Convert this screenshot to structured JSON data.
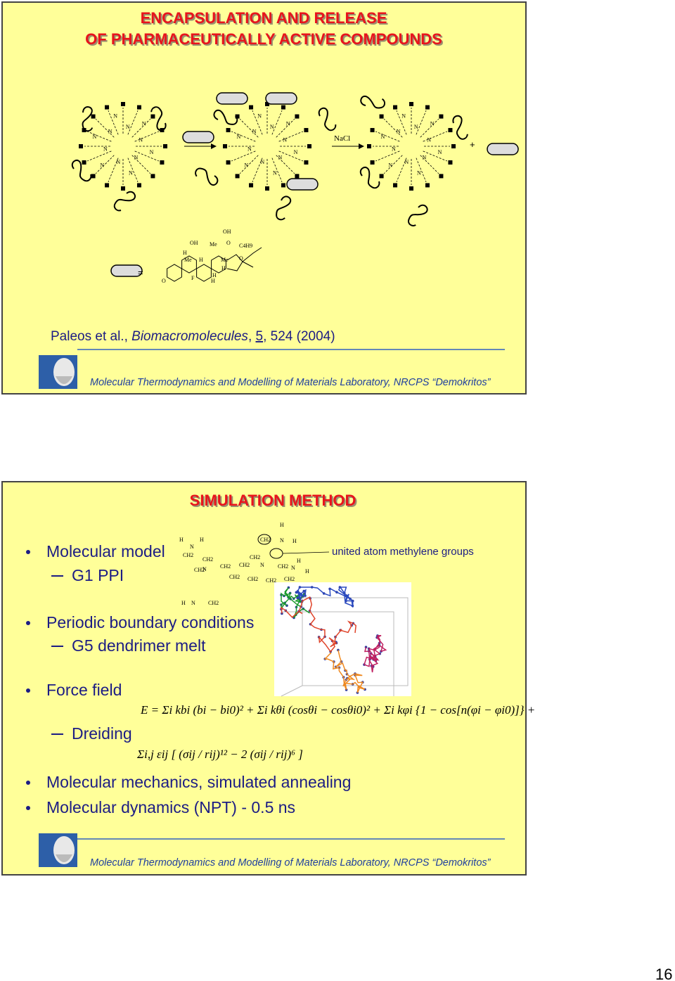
{
  "slide1": {
    "title_lines": [
      "ENCAPSULATION AND RELEASE",
      "OF PHARMACEUTICALLY ACTIVE COMPOUNDS"
    ],
    "scheme": {
      "reagent": "NaCl",
      "plus": "+",
      "equals": "=",
      "atom_label": "N",
      "drug_labels": [
        "OH",
        "OH",
        "Me",
        "O",
        "C4H9",
        "H",
        "Me",
        "H",
        "O",
        "Me",
        "H",
        "H",
        "F",
        "H",
        "O"
      ]
    },
    "reference": {
      "authors": "Paleos et al.",
      "journal": "Biomacromolecules",
      "volume": "5",
      "rest": "524 (2004)"
    },
    "footer": "Molecular Thermodynamics and Modelling of Materials Laboratory, NRCPS “Demokritos”"
  },
  "slide2": {
    "title": "SIMULATION METHOD",
    "bullets": [
      {
        "text": "Molecular model",
        "sub": "G1 PPI"
      },
      {
        "text": "Periodic boundary conditions",
        "sub": "G5 dendrimer melt"
      },
      {
        "text": "Force field",
        "sub": "Dreiding"
      },
      {
        "text": "Molecular mechanics, simulated annealing"
      },
      {
        "text": "Molecular dynamics (NPT) - 0.5 ns"
      }
    ],
    "annotation": "united atom methylene groups",
    "molecule_labels": [
      "H",
      "N",
      "H",
      "CH2",
      "CH2",
      "CH2",
      "N",
      "CH2",
      "CH2",
      "CH2",
      "N",
      "CH2",
      "CH2",
      "CH2",
      "CH2",
      "H",
      "N",
      "CH2",
      "H",
      "CH2",
      "N",
      "H",
      "H",
      "N",
      "H",
      "CH2"
    ],
    "equations": [
      "E = Σi kbi (bi − bi0)² + Σi kθi (cosθi − cosθi0)² + Σi kφi {1 − cos[n(φi − φi0)]} +",
      "Σi,j εij [ (σij / rij)¹² − 2 (σij / rij)⁶ ]"
    ],
    "footer": "Molecular Thermodynamics and Modelling of Materials Laboratory, NRCPS “Demokritos”"
  },
  "page_number": "16"
}
